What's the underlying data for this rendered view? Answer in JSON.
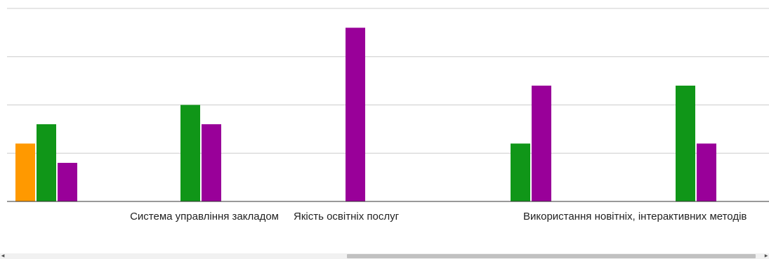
{
  "chart_data": {
    "type": "bar",
    "title": "",
    "xlabel": "",
    "ylabel": "",
    "ylim": [
      0,
      4
    ],
    "grid": true,
    "categories": [
      "",
      "Система управління закладом",
      "Якість освітніх послуг",
      "Використання новітніх, інтерактивних методів",
      ""
    ],
    "series": [
      {
        "color": "#ff9900",
        "values": [
          1.2,
          0,
          0,
          0,
          0
        ]
      },
      {
        "color": "#109618",
        "values": [
          1.6,
          2.0,
          0,
          1.2,
          2.4
        ]
      },
      {
        "color": "#990099",
        "values": [
          0.8,
          1.6,
          3.6,
          2.4,
          1.2
        ]
      }
    ]
  },
  "scrollbar": {
    "left_arrow": "◀",
    "right_arrow": "▶",
    "thumb_position": 0.45,
    "thumb_size": 0.54
  }
}
